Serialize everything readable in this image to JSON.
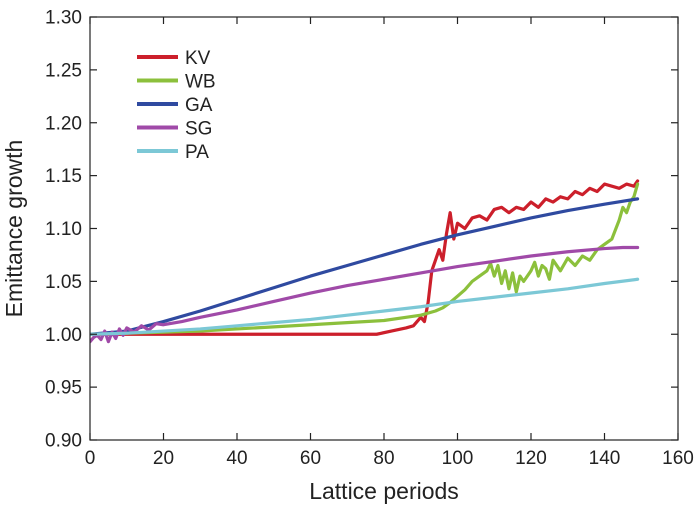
{
  "chart_data": {
    "type": "line",
    "title": "",
    "xlabel": "Lattice periods",
    "ylabel": "Emittance growth",
    "xlim": [
      0,
      160
    ],
    "ylim": [
      0.9,
      1.3
    ],
    "xticks": [
      "0",
      "20",
      "40",
      "60",
      "80",
      "100",
      "120",
      "140",
      "160"
    ],
    "yticks": [
      "0.90",
      "0.95",
      "1.00",
      "1.05",
      "1.10",
      "1.15",
      "1.20",
      "1.25",
      "1.30"
    ],
    "grid": false,
    "legend_position": "top-left",
    "series": [
      {
        "name": "KV",
        "color": "#cc1f2b",
        "x": [
          0,
          10,
          20,
          30,
          40,
          50,
          60,
          70,
          78,
          82,
          86,
          88,
          90,
          91,
          92,
          93,
          94,
          95,
          96,
          97,
          98,
          99,
          100,
          102,
          104,
          106,
          108,
          110,
          112,
          114,
          116,
          118,
          120,
          122,
          124,
          126,
          128,
          130,
          132,
          134,
          136,
          138,
          140,
          142,
          144,
          146,
          148,
          149
        ],
        "values": [
          1.0,
          1.0,
          1.0,
          1.0,
          1.0,
          1.0,
          1.0,
          1.0,
          1.0,
          1.003,
          1.006,
          1.008,
          1.016,
          1.012,
          1.03,
          1.06,
          1.07,
          1.08,
          1.07,
          1.095,
          1.115,
          1.09,
          1.105,
          1.1,
          1.11,
          1.112,
          1.108,
          1.118,
          1.12,
          1.115,
          1.12,
          1.118,
          1.125,
          1.12,
          1.128,
          1.125,
          1.13,
          1.128,
          1.135,
          1.132,
          1.138,
          1.135,
          1.142,
          1.14,
          1.138,
          1.142,
          1.14,
          1.145
        ]
      },
      {
        "name": "WB",
        "color": "#8cc03c",
        "x": [
          0,
          10,
          20,
          30,
          40,
          50,
          60,
          70,
          80,
          86,
          90,
          94,
          96,
          98,
          100,
          102,
          104,
          106,
          108,
          109,
          110,
          111,
          112,
          113,
          114,
          115,
          116,
          117,
          118,
          120,
          121,
          122,
          123,
          124,
          125,
          126,
          128,
          130,
          132,
          134,
          136,
          138,
          140,
          142,
          144,
          145,
          146,
          147,
          148,
          149
        ],
        "values": [
          1.0,
          1.001,
          1.002,
          1.003,
          1.005,
          1.007,
          1.009,
          1.011,
          1.013,
          1.016,
          1.018,
          1.022,
          1.025,
          1.03,
          1.036,
          1.042,
          1.05,
          1.055,
          1.06,
          1.067,
          1.055,
          1.065,
          1.048,
          1.06,
          1.043,
          1.058,
          1.04,
          1.055,
          1.05,
          1.06,
          1.068,
          1.055,
          1.065,
          1.062,
          1.052,
          1.07,
          1.06,
          1.072,
          1.065,
          1.074,
          1.07,
          1.08,
          1.085,
          1.09,
          1.108,
          1.12,
          1.115,
          1.125,
          1.13,
          1.142
        ]
      },
      {
        "name": "GA",
        "color": "#2f4aa0",
        "x": [
          0,
          10,
          20,
          30,
          40,
          50,
          60,
          70,
          80,
          90,
          100,
          110,
          120,
          130,
          140,
          149
        ],
        "values": [
          1.0,
          1.003,
          1.012,
          1.022,
          1.033,
          1.044,
          1.055,
          1.065,
          1.075,
          1.085,
          1.094,
          1.102,
          1.11,
          1.117,
          1.123,
          1.128
        ]
      },
      {
        "name": "SG",
        "color": "#a04aa8",
        "x": [
          0,
          1,
          2,
          3,
          4,
          5,
          6,
          7,
          8,
          9,
          10,
          12,
          14,
          16,
          18,
          20,
          25,
          30,
          40,
          50,
          60,
          70,
          80,
          90,
          100,
          110,
          120,
          130,
          140,
          145,
          149
        ],
        "values": [
          0.993,
          0.997,
          0.999,
          0.995,
          1.003,
          0.993,
          1.002,
          0.996,
          1.005,
          0.999,
          1.006,
          1.002,
          1.008,
          1.004,
          1.01,
          1.009,
          1.012,
          1.016,
          1.023,
          1.031,
          1.039,
          1.046,
          1.052,
          1.058,
          1.064,
          1.069,
          1.074,
          1.078,
          1.081,
          1.082,
          1.082
        ]
      },
      {
        "name": "PA",
        "color": "#7cc8d6",
        "x": [
          0,
          10,
          20,
          30,
          40,
          50,
          60,
          70,
          80,
          90,
          100,
          110,
          120,
          130,
          140,
          149
        ],
        "values": [
          1.0,
          1.001,
          1.003,
          1.005,
          1.008,
          1.011,
          1.014,
          1.018,
          1.022,
          1.026,
          1.031,
          1.035,
          1.039,
          1.043,
          1.048,
          1.052
        ]
      }
    ]
  }
}
